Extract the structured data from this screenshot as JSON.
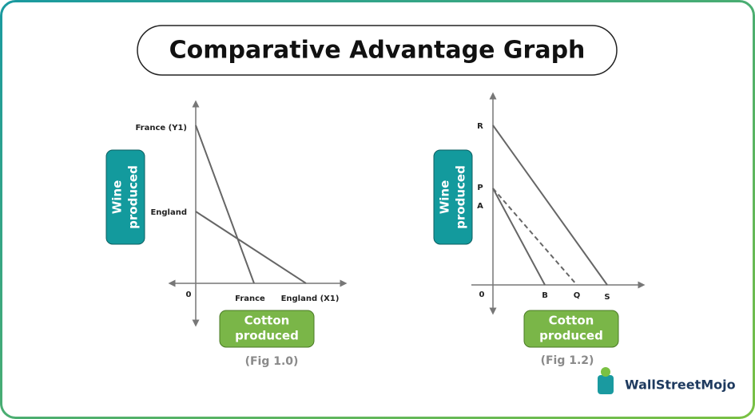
{
  "header": {
    "title": "Comparative Advantage Graph"
  },
  "figures": [
    {
      "y_axis_label": [
        "Wine",
        "produced"
      ],
      "x_axis_label": [
        "Cotton",
        "produced"
      ],
      "y_labels": [
        "France (Y1)",
        "England"
      ],
      "origin": "0",
      "x_labels": [
        "France",
        "England (X1)"
      ],
      "caption": "(Fig 1.0)"
    },
    {
      "y_axis_label": [
        "Wine",
        "produced"
      ],
      "x_axis_label": [
        "Cotton",
        "produced"
      ],
      "y_labels": [
        "R",
        "P",
        "A"
      ],
      "origin": "0",
      "x_labels": [
        "B",
        "Q",
        "S"
      ],
      "caption": "(Fig 1.2)"
    }
  ],
  "logo": {
    "text": "WallStreetMojo"
  }
}
